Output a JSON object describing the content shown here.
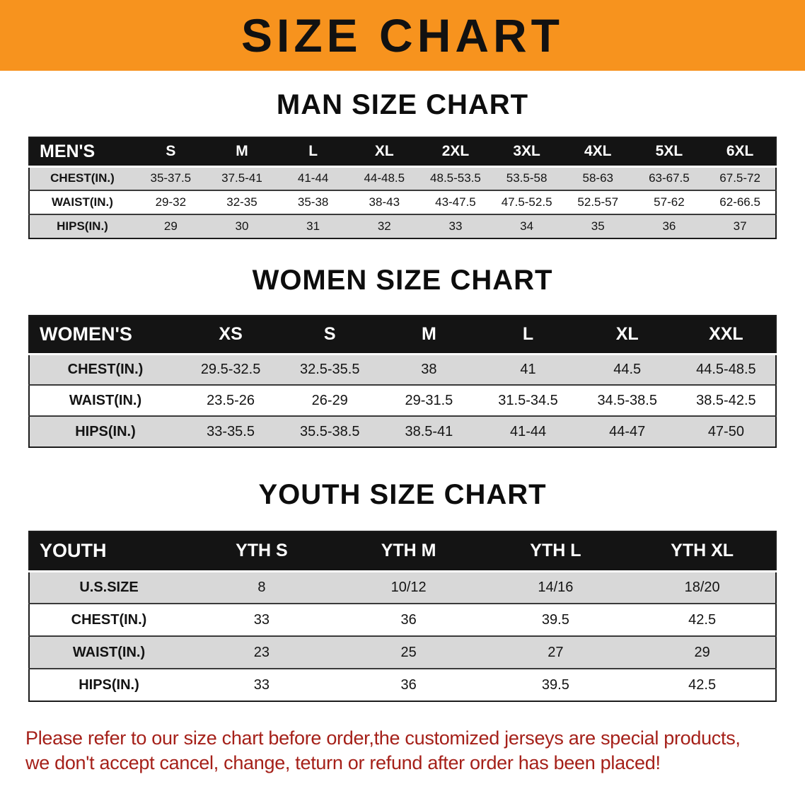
{
  "colors": {
    "banner-bg": "#f7931e",
    "title-text": "#111111",
    "table-header-bg": "#141414",
    "row-stripe": "#d8d8d8",
    "disclaimer-text": "#a52019"
  },
  "banner": {
    "title": "SIZE CHART"
  },
  "sections": [
    {
      "heading": "MAN SIZE CHART",
      "table": {
        "header": [
          "MEN'S",
          "S",
          "M",
          "L",
          "XL",
          "2XL",
          "3XL",
          "4XL",
          "5XL",
          "6XL"
        ],
        "rows": [
          [
            "CHEST(IN.)",
            "35-37.5",
            "37.5-41",
            "41-44",
            "44-48.5",
            "48.5-53.5",
            "53.5-58",
            "58-63",
            "63-67.5",
            "67.5-72"
          ],
          [
            "WAIST(IN.)",
            "29-32",
            "32-35",
            "35-38",
            "38-43",
            "43-47.5",
            "47.5-52.5",
            "52.5-57",
            "57-62",
            "62-66.5"
          ],
          [
            "HIPS(IN.)",
            "29",
            "30",
            "31",
            "32",
            "33",
            "34",
            "35",
            "36",
            "37"
          ]
        ]
      }
    },
    {
      "heading": "WOMEN SIZE CHART",
      "table": {
        "header": [
          "WOMEN'S",
          "XS",
          "S",
          "M",
          "L",
          "XL",
          "XXL"
        ],
        "rows": [
          [
            "CHEST(IN.)",
            "29.5-32.5",
            "32.5-35.5",
            "38",
            "41",
            "44.5",
            "44.5-48.5"
          ],
          [
            "WAIST(IN.)",
            "23.5-26",
            "26-29",
            "29-31.5",
            "31.5-34.5",
            "34.5-38.5",
            "38.5-42.5"
          ],
          [
            "HIPS(IN.)",
            "33-35.5",
            "35.5-38.5",
            "38.5-41",
            "41-44",
            "44-47",
            "47-50"
          ]
        ]
      }
    },
    {
      "heading": "YOUTH SIZE CHART",
      "table": {
        "header": [
          "YOUTH",
          "YTH S",
          "YTH M",
          "YTH L",
          "YTH XL"
        ],
        "rows": [
          [
            "U.S.SIZE",
            "8",
            "10/12",
            "14/16",
            "18/20"
          ],
          [
            "CHEST(IN.)",
            "33",
            "36",
            "39.5",
            "42.5"
          ],
          [
            "WAIST(IN.)",
            "23",
            "25",
            "27",
            "29"
          ],
          [
            "HIPS(IN.)",
            "33",
            "36",
            "39.5",
            "42.5"
          ]
        ]
      }
    }
  ],
  "disclaimer": {
    "line1": "Please refer to our size chart before order,the customized jerseys are special products,",
    "line2": "we don't accept cancel, change, teturn or refund after order has been placed!"
  }
}
